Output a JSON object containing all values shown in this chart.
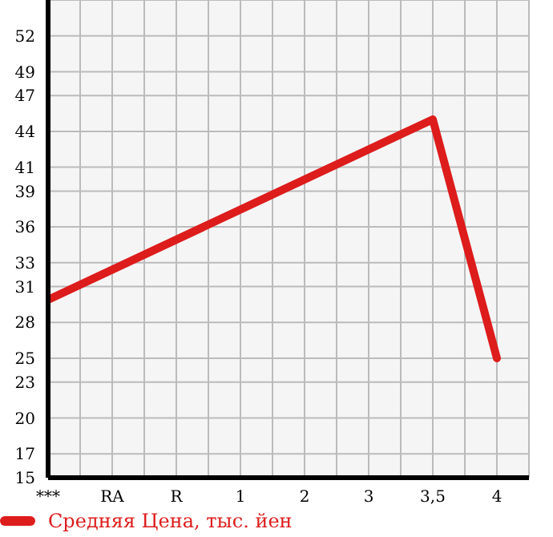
{
  "chart_data": {
    "type": "line",
    "categories": [
      "***",
      "RA",
      "R",
      "1",
      "2",
      "3",
      "3,5",
      "4"
    ],
    "series": [
      {
        "name": "Средняя Цена, тыс. йен",
        "color": "#dd1c1c",
        "values": [
          29.9,
          null,
          null,
          null,
          null,
          null,
          45,
          25
        ]
      }
    ],
    "ylim": [
      15,
      55
    ],
    "yticks": [
      15,
      17,
      20,
      23,
      25,
      28,
      31,
      33,
      36,
      39,
      41,
      44,
      47,
      49,
      52
    ],
    "grid": true,
    "legend": "bottom",
    "marker": "none",
    "line_style": "solid"
  }
}
